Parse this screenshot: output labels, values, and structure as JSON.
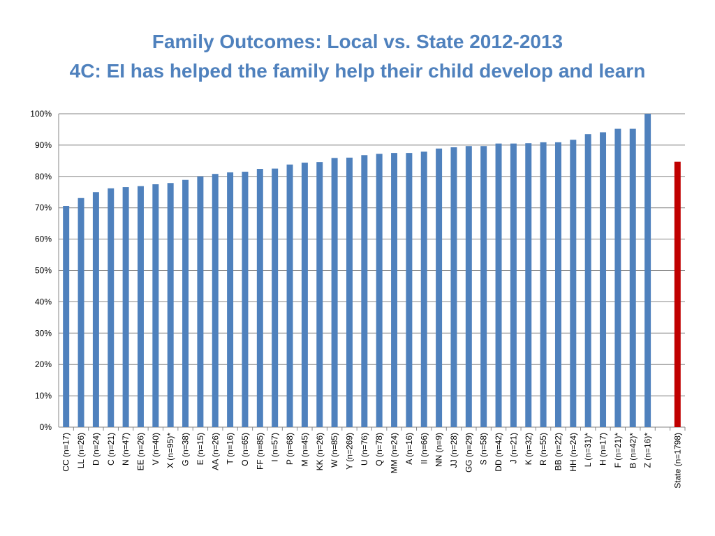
{
  "slide": {
    "title_line1": "Family Outcomes: Local vs. State 2012-2013",
    "title_line2": "4C: EI has helped the family help their child develop and learn"
  },
  "chart_data": {
    "type": "bar",
    "title": "Family Outcomes: Local vs. State 2012-2013",
    "subtitle": "4C: EI has helped the family help their child develop and learn",
    "xlabel": "",
    "ylabel": "",
    "ylim": [
      0,
      100
    ],
    "yticks": [
      "0%",
      "10%",
      "20%",
      "30%",
      "40%",
      "50%",
      "60%",
      "70%",
      "80%",
      "90%",
      "100%"
    ],
    "grid": true,
    "legend": "none",
    "colors": {
      "local": "#4f81bd",
      "state": "#c00000"
    },
    "categories": [
      "CC (n=17)",
      "LL (n=26)",
      "D (n=24)",
      "C (n=21)",
      "N (n=47)",
      "EE (n=26)",
      "V (n=40)",
      "X (n=95)*",
      "G (n=38)",
      "E (n=15)",
      "AA (n=26)",
      "T (n=16)",
      "O (n=65)",
      "FF (n=85)",
      "I (n=57)",
      "P (n=68)",
      "M (n=45)",
      "KK (n=26)",
      "W (n=85)",
      "Y (n=269)",
      "U (n=76)",
      "Q (n=78)",
      "MM (n=24)",
      "A (n=16)",
      "II (n=66)",
      "NN (n=9)",
      "JJ (n=28)",
      "GG (n=29)",
      "S (n=58)",
      "DD (n=42)",
      "J (n=21)",
      "K (n=32)",
      "R (n=55)",
      "BB (n=22)",
      "HH (n=24)",
      "L (n=31)*",
      "H (n=17)",
      "F (n=21)*",
      "B (n=42)*",
      "Z (n=16)*",
      "",
      "State (n=1798)"
    ],
    "values": [
      70.6,
      73.1,
      75.0,
      76.2,
      76.6,
      76.9,
      77.5,
      77.9,
      78.9,
      80.0,
      80.8,
      81.3,
      81.5,
      82.4,
      82.5,
      83.8,
      84.4,
      84.6,
      85.9,
      86.0,
      86.8,
      87.2,
      87.5,
      87.5,
      87.9,
      88.9,
      89.3,
      89.7,
      89.7,
      90.5,
      90.5,
      90.6,
      90.9,
      90.9,
      91.7,
      93.5,
      94.1,
      95.2,
      95.2,
      100.0,
      null,
      84.7
    ],
    "state_index": 41
  }
}
